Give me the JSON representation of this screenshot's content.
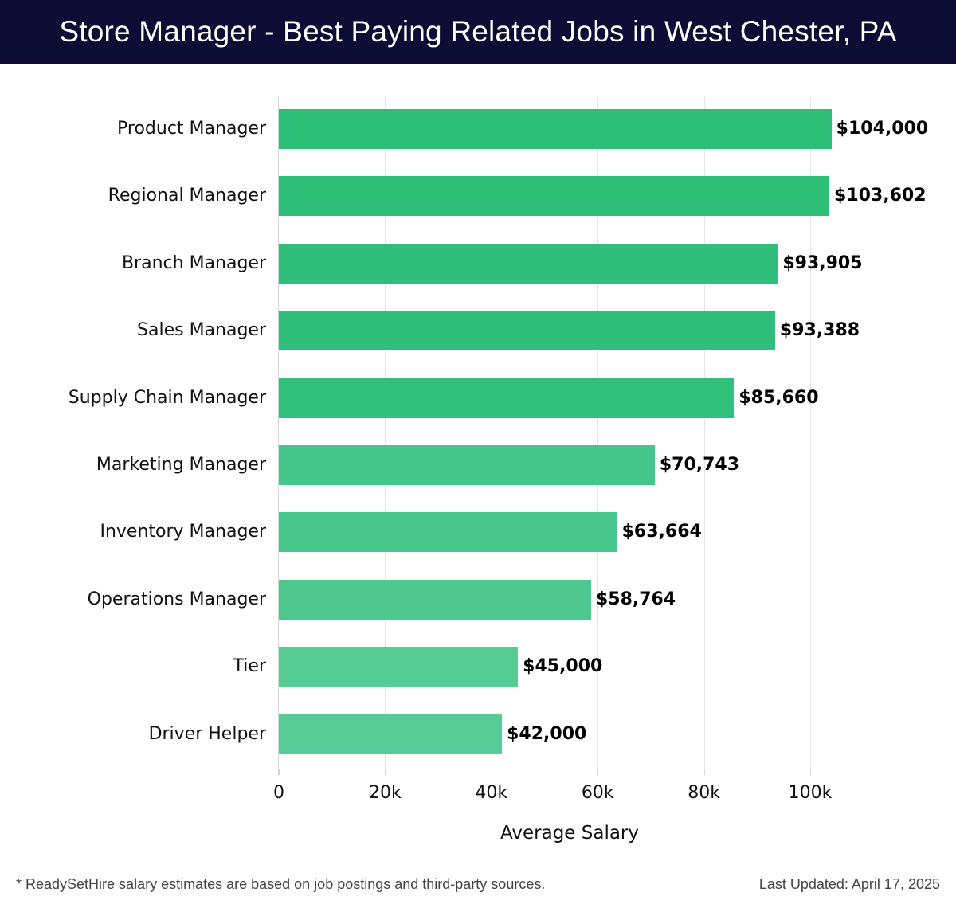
{
  "header": {
    "title": "Store Manager - Best Paying Related Jobs in West Chester, PA"
  },
  "footer": {
    "note": "* ReadySetHire salary estimates are based on job postings and third-party sources.",
    "updated": "Last Updated: April 17, 2025"
  },
  "chart_data": {
    "type": "bar",
    "orientation": "horizontal",
    "title": "Store Manager - Best Paying Related Jobs in West Chester, PA",
    "xlabel": "Average Salary",
    "ylabel": "",
    "xlim": [
      0,
      109000
    ],
    "xticks": [
      "0",
      "20k",
      "40k",
      "60k",
      "80k",
      "100k"
    ],
    "grid": true,
    "categories": [
      "Product Manager",
      "Regional Manager",
      "Branch Manager",
      "Sales Manager",
      "Supply Chain Manager",
      "Marketing Manager",
      "Inventory Manager",
      "Operations Manager",
      "Tier",
      "Driver Helper"
    ],
    "values": [
      104000,
      103602,
      93905,
      93388,
      85660,
      70743,
      63664,
      58764,
      45000,
      42000
    ],
    "labels": [
      "$104,000",
      "$103,602",
      "$93,905",
      "$93,388",
      "$85,660",
      "$70,743",
      "$63,664",
      "$58,764",
      "$45,000",
      "$42,000"
    ],
    "colors": [
      "#2dbe78",
      "#2dbe78",
      "#2fbf7a",
      "#2fbf7a",
      "#30c07b",
      "#45c68a",
      "#48c78c",
      "#4dc88f",
      "#56cc95",
      "#58cc96"
    ]
  }
}
